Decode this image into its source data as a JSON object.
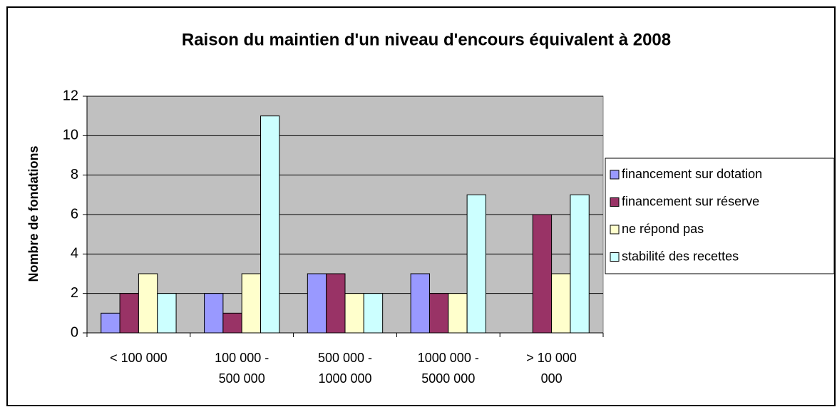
{
  "chart_data": {
    "type": "bar",
    "title": "Raison du maintien d'un niveau d'encours équivalent à 2008",
    "y_label": "Nombre de fondations",
    "categories": [
      "< 100 000",
      "100 000 - 500 000",
      "500 000 - 1000 000",
      "1000 000 - 5000 000",
      "> 10 000 000"
    ],
    "series": [
      {
        "name": "financement sur dotation",
        "color": "#9999ff",
        "values": [
          1,
          2,
          3,
          3,
          0
        ]
      },
      {
        "name": "financement sur réserve",
        "color": "#993366",
        "values": [
          2,
          1,
          3,
          2,
          6
        ]
      },
      {
        "name": "ne répond pas",
        "color": "#ffffcc",
        "values": [
          3,
          3,
          2,
          2,
          3
        ]
      },
      {
        "name": "stabilité des recettes",
        "color": "#ccffff",
        "values": [
          2,
          11,
          2,
          7,
          7
        ]
      }
    ],
    "ylim": [
      0,
      12
    ],
    "yticks": [
      0,
      2,
      4,
      6,
      8,
      10,
      12
    ],
    "grid": true,
    "legend": "right"
  }
}
